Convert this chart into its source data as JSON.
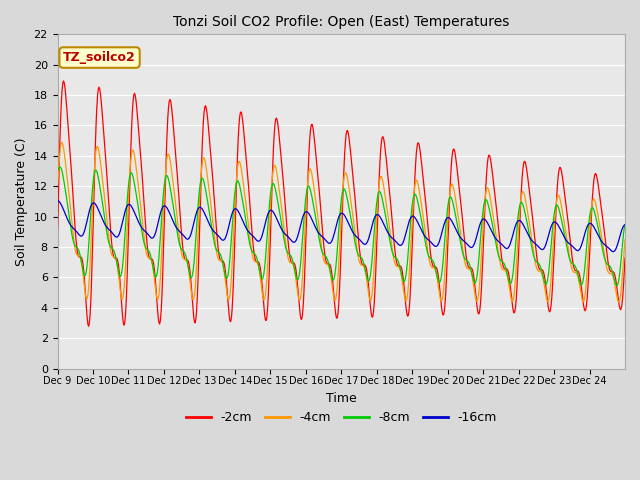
{
  "title": "Tonzi Soil CO2 Profile: Open (East) Temperatures",
  "xlabel": "Time",
  "ylabel": "Soil Temperature (C)",
  "ylim": [
    0,
    22
  ],
  "xlim": [
    0,
    16
  ],
  "fig_bg": "#d9d9d9",
  "plot_bg": "#e8e8e8",
  "annotation_text": "TZ_soilco2",
  "annotation_bg": "#ffffcc",
  "annotation_border": "#bb8800",
  "colors": {
    "-2cm": "#ff0000",
    "-4cm": "#ff9900",
    "-8cm": "#00cc00",
    "-16cm": "#0000cc"
  },
  "xtick_labels": [
    "Dec 9",
    "Dec 10",
    "Dec 11",
    "Dec 12",
    "Dec 13",
    "Dec 14",
    "Dec 15",
    "Dec 16",
    "Dec 17",
    "Dec 18",
    "Dec 19",
    "Dec 20",
    "Dec 21",
    "Dec 22",
    "Dec 23",
    "Dec 24"
  ],
  "legend_entries": [
    "-2cm",
    "-4cm",
    "-8cm",
    "-16cm"
  ]
}
